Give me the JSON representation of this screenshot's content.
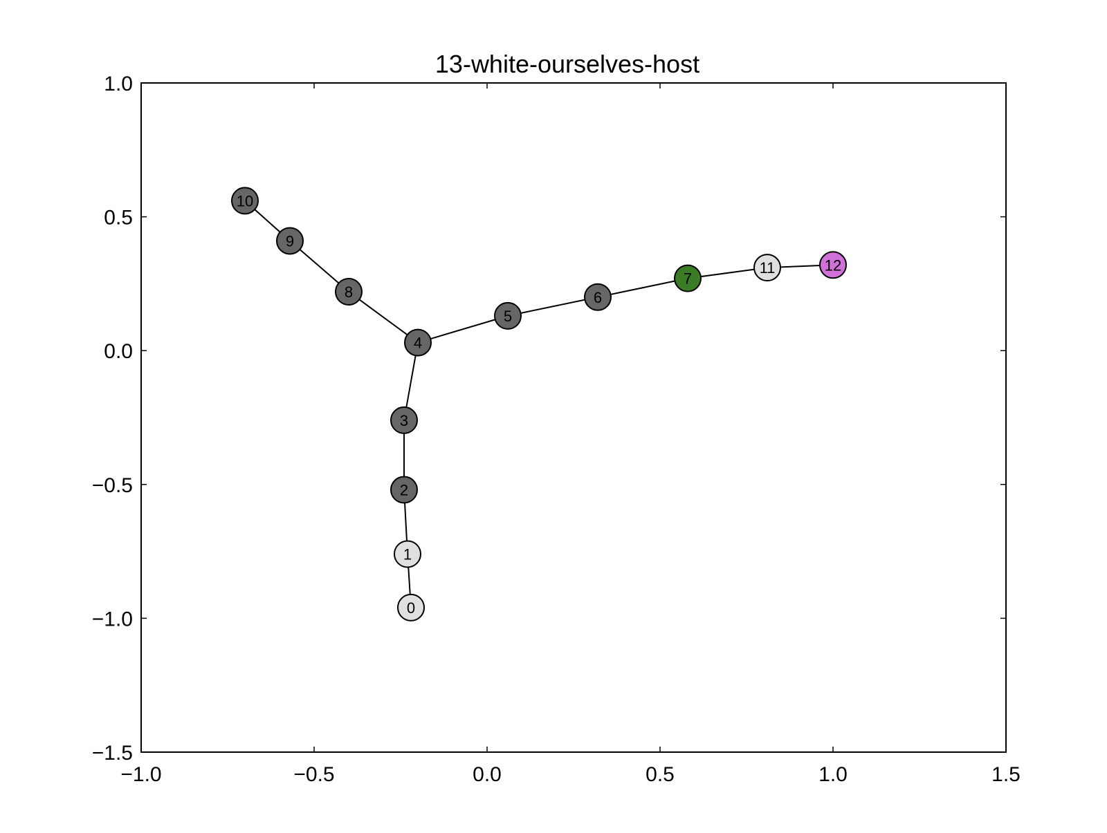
{
  "chart_data": {
    "type": "scatter",
    "title": "13-white-ourselves-host",
    "xlabel": "",
    "ylabel": "",
    "xlim": [
      -1.0,
      1.5
    ],
    "ylim": [
      -1.5,
      1.0
    ],
    "xticks": [
      -1.0,
      -0.5,
      0.0,
      0.5,
      1.0,
      1.5
    ],
    "yticks": [
      -1.5,
      -1.0,
      -0.5,
      0.0,
      0.5,
      1.0
    ],
    "xtick_labels": [
      "−1.0",
      "−0.5",
      "0.0",
      "0.5",
      "1.0",
      "1.5"
    ],
    "ytick_labels": [
      "−1.5",
      "−1.0",
      "−0.5",
      "0.0",
      "0.5",
      "1.0"
    ],
    "grid": false,
    "colors": {
      "light": "#e0e0e0",
      "dark": "#666666",
      "green": "#3a7d26",
      "magenta": "#d070d8",
      "edge": "#000000"
    },
    "nodes": [
      {
        "id": "0",
        "label": "0",
        "x": -0.22,
        "y": -0.96,
        "color": "light"
      },
      {
        "id": "1",
        "label": "1",
        "x": -0.23,
        "y": -0.76,
        "color": "light"
      },
      {
        "id": "2",
        "label": "2",
        "x": -0.24,
        "y": -0.52,
        "color": "dark"
      },
      {
        "id": "3",
        "label": "3",
        "x": -0.24,
        "y": -0.26,
        "color": "dark"
      },
      {
        "id": "4",
        "label": "4",
        "x": -0.2,
        "y": 0.03,
        "color": "dark"
      },
      {
        "id": "5",
        "label": "5",
        "x": 0.06,
        "y": 0.13,
        "color": "dark"
      },
      {
        "id": "6",
        "label": "6",
        "x": 0.32,
        "y": 0.2,
        "color": "dark"
      },
      {
        "id": "7",
        "label": "7",
        "x": 0.58,
        "y": 0.27,
        "color": "green"
      },
      {
        "id": "8",
        "label": "8",
        "x": -0.4,
        "y": 0.22,
        "color": "dark"
      },
      {
        "id": "9",
        "label": "9",
        "x": -0.57,
        "y": 0.41,
        "color": "dark"
      },
      {
        "id": "10",
        "label": "10",
        "x": -0.7,
        "y": 0.56,
        "color": "dark"
      },
      {
        "id": "11",
        "label": "11",
        "x": 0.81,
        "y": 0.31,
        "color": "light"
      },
      {
        "id": "12",
        "label": "12",
        "x": 1.0,
        "y": 0.32,
        "color": "magenta"
      }
    ],
    "edges": [
      [
        "0",
        "1"
      ],
      [
        "1",
        "2"
      ],
      [
        "2",
        "3"
      ],
      [
        "3",
        "4"
      ],
      [
        "4",
        "5"
      ],
      [
        "5",
        "6"
      ],
      [
        "6",
        "7"
      ],
      [
        "7",
        "11"
      ],
      [
        "11",
        "12"
      ],
      [
        "4",
        "8"
      ],
      [
        "8",
        "9"
      ],
      [
        "9",
        "10"
      ]
    ]
  }
}
